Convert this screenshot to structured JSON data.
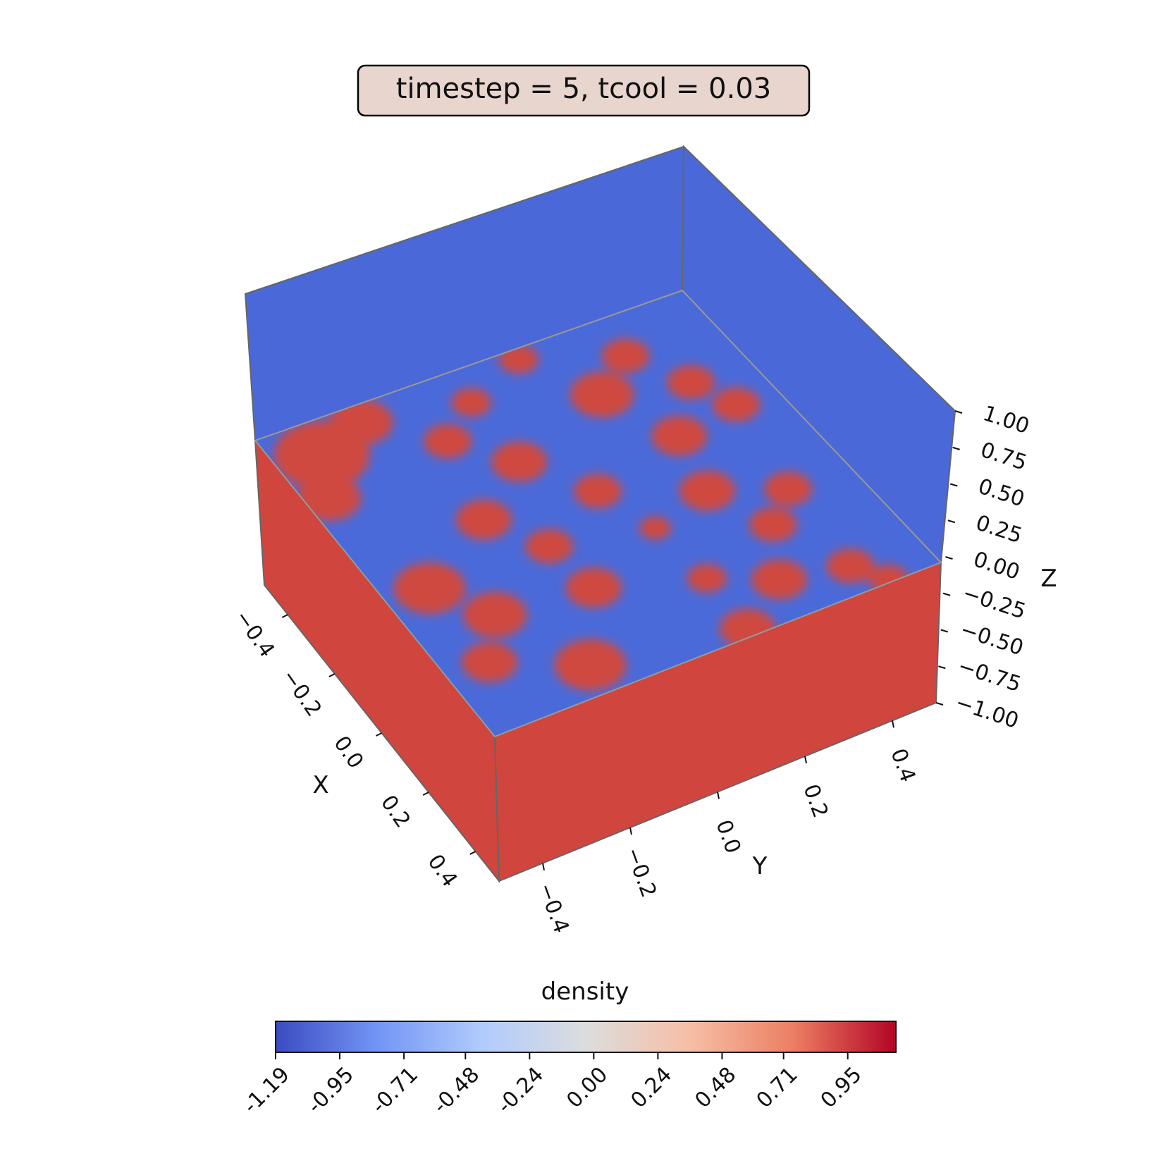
{
  "chart_data": {
    "type": "heatmap",
    "title": "timestep = 5, tcool = 0.03",
    "projection": "3d",
    "xlabel": "X",
    "ylabel": "Y",
    "zlabel": "Z",
    "x_ticks": [
      "−0.4",
      "−0.2",
      "0.0",
      "0.2",
      "0.4"
    ],
    "y_ticks": [
      "−0.4",
      "−0.2",
      "0.0",
      "0.2",
      "0.4"
    ],
    "z_ticks": [
      "−1.00",
      "−0.75",
      "−0.50",
      "−0.25",
      "0.00",
      "0.25",
      "0.50",
      "0.75",
      "1.00"
    ],
    "xlim": [
      -0.5,
      0.5
    ],
    "ylim": [
      -0.5,
      0.5
    ],
    "zlim": [
      -1.0,
      1.0
    ],
    "colormap": "coolwarm",
    "colormap_stops": [
      "#3b4cc0",
      "#7396f5",
      "#b0cbfc",
      "#dcdddd",
      "#f6bfa6",
      "#ec7f63",
      "#b40426"
    ],
    "colorbar": {
      "label": "density",
      "ticks": [
        "-1.19",
        "-0.95",
        "-0.71",
        "-0.48",
        "-0.24",
        "0.00",
        "0.24",
        "0.48",
        "0.71",
        "0.95"
      ],
      "orientation": "horizontal",
      "range": [
        -1.19,
        1.13
      ]
    },
    "faces": {
      "back_wall_color": "#4a68d8",
      "front_wall_color": "#d0453e",
      "top_high_color": "#cf4a40",
      "top_low_color": "#4b6ad9"
    }
  }
}
